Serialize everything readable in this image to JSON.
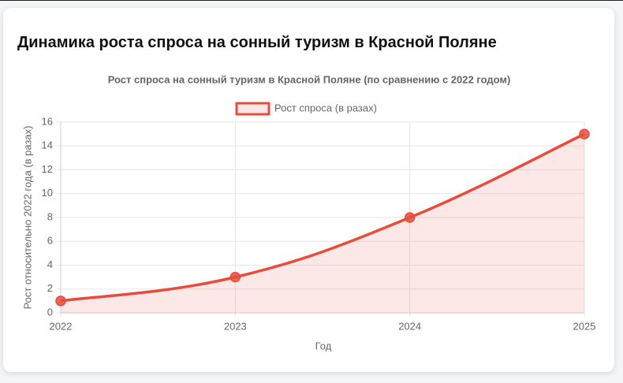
{
  "header": {
    "title": "Динамика роста спроса на сонный туризм в Красной Поляне"
  },
  "chart_data": {
    "type": "line",
    "title": "Рост спроса на сонный туризм в Красной Поляне (по сравнению с 2022 годом)",
    "categories": [
      "2022",
      "2023",
      "2024",
      "2025"
    ],
    "series": [
      {
        "name": "Рост спроса (в разах)",
        "color": "#e74c3c",
        "values": [
          1,
          3,
          8,
          15
        ]
      }
    ],
    "ylim": [
      0,
      16
    ],
    "yticks": [
      0,
      2,
      4,
      6,
      8,
      10,
      12,
      14,
      16
    ],
    "xlabel": "Год",
    "ylabel": "Рост относительно 2022 года (в разах)",
    "grid": true,
    "fill": true,
    "legend": "top"
  }
}
